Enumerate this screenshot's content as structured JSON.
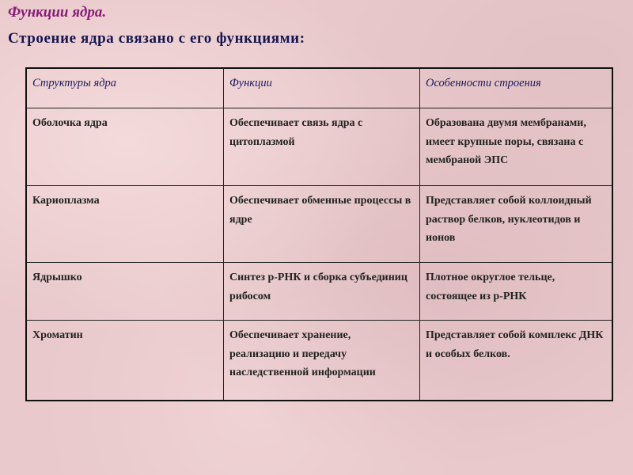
{
  "title": "Функции ядра.",
  "subtitle": "Строение ядра связано с его функциями:",
  "table": {
    "headers": [
      "Структуры ядра",
      "Функции",
      "Особенности строения"
    ],
    "rows": [
      [
        "Оболочка ядра",
        "Обеспечивает связь ядра с цитоплазмой",
        "Образована двумя мембранами, имеет крупные поры, связана с мембраной ЭПС"
      ],
      [
        "Кариоплазма",
        "Обеспечивает обменные процессы в ядре",
        "Представляет собой коллоидный раствор белков, нуклеотидов и ионов"
      ],
      [
        "Ядрышко",
        "Синтез р-РНК и сборка субъединиц  рибосом",
        "Плотное округлое тельце, состоящее из р-РНК"
      ],
      [
        "Хроматин",
        "Обеспечивает хранение, реализацию и передачу наследственной информации",
        "Представляет собой комплекс ДНК и особых белков."
      ]
    ]
  }
}
